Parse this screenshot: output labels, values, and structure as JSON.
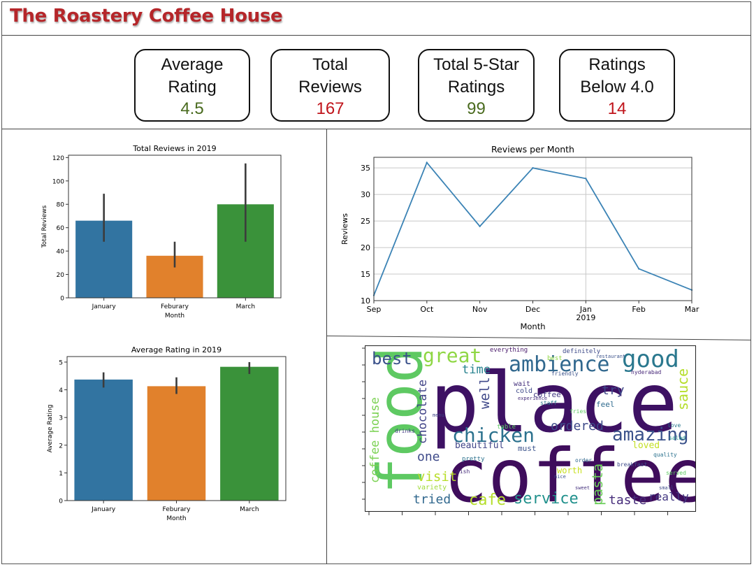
{
  "header": {
    "title": "The Roastery Coffee House"
  },
  "kpis": [
    {
      "line1": "Average",
      "line2": "Rating",
      "value": "4.5",
      "color": "#4a6b1f"
    },
    {
      "line1": "Total",
      "line2": "Reviews",
      "value": "167",
      "color": "#c0141b"
    },
    {
      "line1": "Total 5-Star",
      "line2": "Ratings",
      "value": "99",
      "color": "#4a6b1f"
    },
    {
      "line1": "Ratings",
      "line2": "Below 4.0",
      "value": "14",
      "color": "#c0141b"
    }
  ],
  "chart_data": [
    {
      "type": "bar",
      "title": "Total Reviews in 2019",
      "xlabel": "Month",
      "ylabel": "Total Reviews",
      "categories": [
        "January",
        "Feburary",
        "March"
      ],
      "values": [
        66,
        36,
        80
      ],
      "error_low": [
        48,
        26,
        48
      ],
      "error_high": [
        89,
        48,
        115
      ],
      "colors": [
        "#3274a1",
        "#e1812c",
        "#3a923a"
      ],
      "ylim": [
        0,
        122
      ],
      "yticks": [
        0,
        20,
        40,
        60,
        80,
        100,
        120
      ]
    },
    {
      "type": "line",
      "title": "Reviews per Month",
      "xlabel": "Month",
      "ylabel": "Reviews",
      "x": [
        "Sep",
        "Oct",
        "Nov",
        "Dec",
        "Jan",
        "Feb",
        "Mar"
      ],
      "x_sublabel": {
        "index": 4,
        "text": "2019"
      },
      "values": [
        11,
        36,
        24,
        35,
        33,
        16,
        12
      ],
      "color": "#3b83b5",
      "ylim": [
        10,
        37
      ],
      "yticks": [
        10,
        15,
        20,
        25,
        30,
        35
      ],
      "grid": true
    },
    {
      "type": "bar",
      "title": "Average Rating in 2019",
      "xlabel": "Month",
      "ylabel": "Average Rating",
      "categories": [
        "January",
        "Feburary",
        "March"
      ],
      "values": [
        4.37,
        4.13,
        4.83
      ],
      "error_low": [
        4.08,
        3.85,
        4.57
      ],
      "error_high": [
        4.63,
        4.45,
        5.0
      ],
      "colors": [
        "#3274a1",
        "#e1812c",
        "#3a923a"
      ],
      "ylim": [
        0,
        5.2
      ],
      "yticks": [
        0,
        1,
        2,
        3,
        4,
        5
      ]
    }
  ],
  "wordcloud": {
    "words": [
      {
        "text": "place",
        "color": "#3d1163"
      },
      {
        "text": "coffee",
        "color": "#3f0d5c"
      },
      {
        "text": "food",
        "color": "#5ec962"
      },
      {
        "text": "ambience",
        "color": "#31688e"
      },
      {
        "text": "good",
        "color": "#2a788e"
      },
      {
        "text": "chicken",
        "color": "#2c728e"
      },
      {
        "text": "amazing",
        "color": "#3b528b"
      },
      {
        "text": "great",
        "color": "#8fd744"
      },
      {
        "text": "best",
        "color": "#3b528b"
      },
      {
        "text": "service",
        "color": "#21918c"
      },
      {
        "text": "cafe",
        "color": "#b5de2b"
      },
      {
        "text": "tried",
        "color": "#31688e"
      },
      {
        "text": "taste",
        "color": "#472d7b"
      },
      {
        "text": "really",
        "color": "#443983"
      },
      {
        "text": "ordered",
        "color": "#3e4a89"
      },
      {
        "text": "chocolate",
        "color": "#404387"
      },
      {
        "text": "coffee house",
        "color": "#7ad151"
      },
      {
        "text": "visit",
        "color": "#b8de29"
      },
      {
        "text": "well",
        "color": "#3f4889"
      },
      {
        "text": "time",
        "color": "#26828e"
      },
      {
        "text": "one",
        "color": "#3e4a89"
      },
      {
        "text": "beautiful",
        "color": "#404588"
      },
      {
        "text": "sauce",
        "color": "#b5de2b"
      },
      {
        "text": "try",
        "color": "#3f4788"
      },
      {
        "text": "pasta",
        "color": "#6ccd5a"
      },
      {
        "text": "loved",
        "color": "#c2df23"
      },
      {
        "text": "must",
        "color": "#3b528b"
      },
      {
        "text": "coffee",
        "color": "#443a83"
      },
      {
        "text": "feel",
        "color": "#2f6b8e"
      },
      {
        "text": "cold",
        "color": "#3e4989"
      },
      {
        "text": "wait",
        "color": "#46327e"
      },
      {
        "text": "definitely",
        "color": "#3e4a89"
      },
      {
        "text": "everything",
        "color": "#48186a"
      },
      {
        "text": "hyderabad",
        "color": "#482979"
      },
      {
        "text": "friendly",
        "color": "#3b528b"
      },
      {
        "text": "table",
        "color": "#5ec962"
      },
      {
        "text": "variety",
        "color": "#a0da39"
      },
      {
        "text": "worth",
        "color": "#c8e020"
      },
      {
        "text": "pretty",
        "color": "#2c728e"
      },
      {
        "text": "restaurant",
        "color": "#3b528b"
      },
      {
        "text": "experience",
        "color": "#472d7b"
      },
      {
        "text": "staff",
        "color": "#2a788e"
      },
      {
        "text": "breakfast",
        "color": "#3e4a89"
      },
      {
        "text": "served",
        "color": "#5ec962"
      },
      {
        "text": "menu",
        "color": "#404387"
      },
      {
        "text": "quality",
        "color": "#2c728e"
      },
      {
        "text": "order",
        "color": "#31688e"
      },
      {
        "text": "nice",
        "color": "#3b528b"
      },
      {
        "text": "dish",
        "color": "#472d7b"
      },
      {
        "text": "best",
        "color": "#8fd744"
      },
      {
        "text": "love",
        "color": "#2a788e"
      },
      {
        "text": "sweet",
        "color": "#46327e"
      },
      {
        "text": "small",
        "color": "#3e4a89"
      },
      {
        "text": "fries",
        "color": "#5ec962"
      },
      {
        "text": "salad",
        "color": "#21918c"
      },
      {
        "text": "drinks",
        "color": "#443983"
      }
    ]
  }
}
